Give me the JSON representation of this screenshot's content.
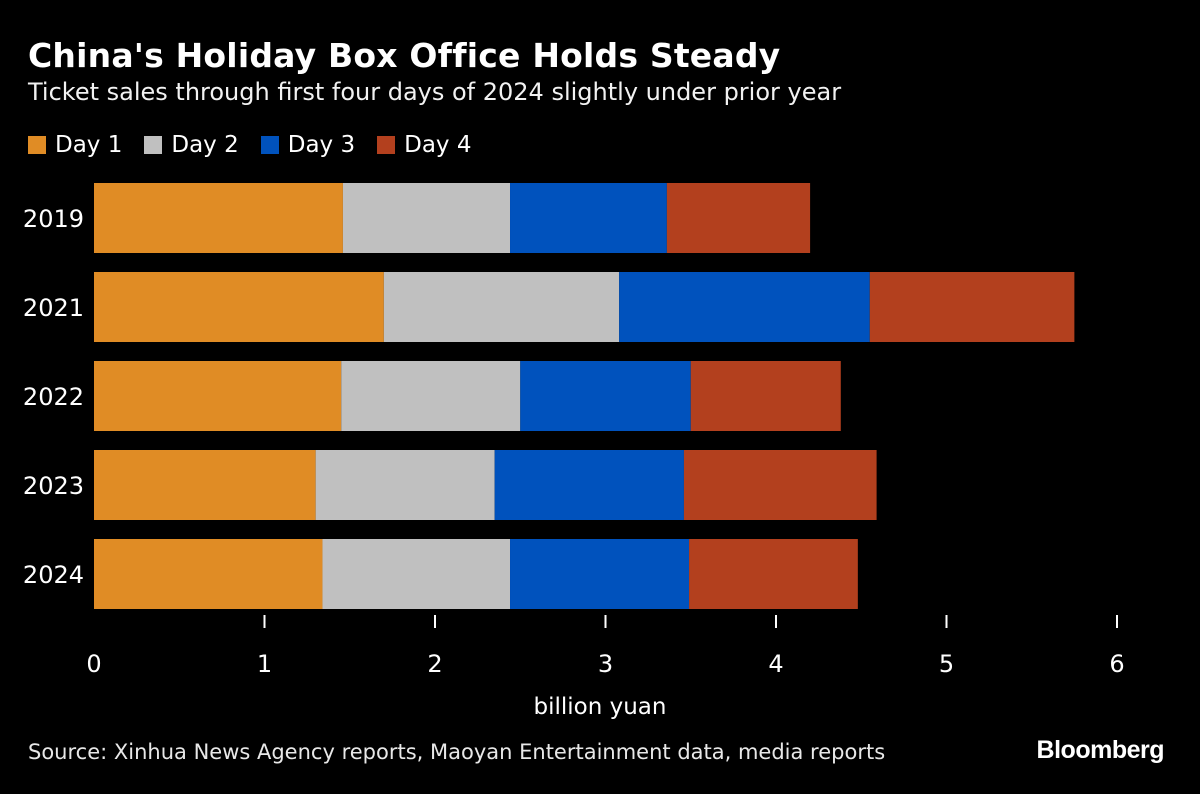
{
  "title": "China's Holiday Box Office Holds Steady",
  "subtitle": "Ticket sales through first four days of 2024 slightly under prior year",
  "source": "Source: Xinhua News Agency reports, Maoyan Entertainment data, media reports",
  "brand": "Bloomberg",
  "chart_data": {
    "type": "bar",
    "orientation": "horizontal",
    "stacked": true,
    "categories": [
      "2019",
      "2021",
      "2022",
      "2023",
      "2024"
    ],
    "series": [
      {
        "name": "Day 1",
        "color": "#e08c25",
        "values": [
          1.46,
          1.7,
          1.45,
          1.3,
          1.34
        ]
      },
      {
        "name": "Day 2",
        "color": "#c0c0c0",
        "values": [
          0.98,
          1.38,
          1.05,
          1.05,
          1.1
        ]
      },
      {
        "name": "Day 3",
        "color": "#0052bd",
        "values": [
          0.92,
          1.47,
          1.0,
          1.11,
          1.05
        ]
      },
      {
        "name": "Day 4",
        "color": "#b3401e",
        "values": [
          0.84,
          1.2,
          0.88,
          1.13,
          0.99
        ]
      }
    ],
    "xlabel": "billion yuan",
    "ylabel": "",
    "xlim": [
      0,
      6
    ],
    "xticks": [
      "0",
      "1",
      "2",
      "3",
      "4",
      "5",
      "6"
    ],
    "grid": false,
    "legend_position": "top-left"
  }
}
